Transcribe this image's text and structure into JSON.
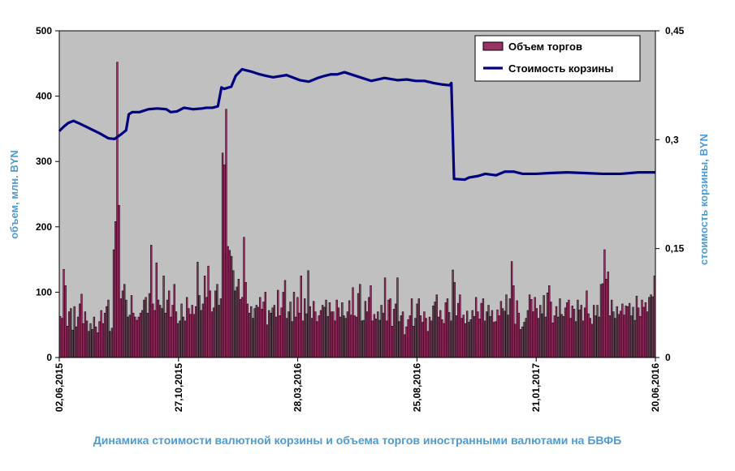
{
  "chart_data": {
    "type": "bar+line",
    "title": "Динамика  стоимости валютной корзины и объема торгов иностранными валютами на БВФБ",
    "left_axis": {
      "label": "объем, млн. BYN",
      "ticks": [
        "0",
        "100",
        "200",
        "300",
        "400",
        "500"
      ],
      "ylim": [
        0,
        500
      ]
    },
    "right_axis": {
      "label": "стоимость  корзины, BYN",
      "ticks": [
        "0",
        "0,15",
        "0,3",
        "0,45"
      ],
      "ylim": [
        0,
        0.45
      ]
    },
    "x_tick_labels": [
      "02,06,2015",
      "27,10,2015",
      "28,03,2016",
      "25,08,2016",
      "21,01,2017",
      "20,06,2016"
    ],
    "legend": {
      "position": "top-right",
      "entries": [
        "Объем торгов",
        "Стоимость  корзины"
      ]
    },
    "colors": {
      "plot_bg": "#c0c0c0",
      "bar_fill": "#993366",
      "line": "#000080",
      "axis_title": "#4f9bd1"
    },
    "grid": false,
    "series": [
      {
        "name": "Объем торгов",
        "kind": "bar",
        "axis": "left",
        "values": [
          63,
          60,
          135,
          110,
          48,
          70,
          75,
          42,
          78,
          47,
          62,
          82,
          97,
          52,
          70,
          56,
          40,
          52,
          43,
          62,
          47,
          38,
          55,
          72,
          52,
          68,
          78,
          88,
          40,
          45,
          165,
          208,
          452,
          233,
          90,
          102,
          112,
          88,
          62,
          65,
          95,
          68,
          62,
          57,
          62,
          68,
          72,
          88,
          92,
          68,
          98,
          172,
          82,
          72,
          145,
          88,
          80,
          75,
          125,
          68,
          88,
          102,
          62,
          80,
          112,
          70,
          52,
          56,
          82,
          62,
          56,
          92,
          75,
          66,
          80,
          66,
          78,
          146,
          95,
          72,
          82,
          125,
          92,
          140,
          102,
          70,
          76,
          102,
          112,
          80,
          90,
          313,
          295,
          380,
          170,
          164,
          155,
          133,
          102,
          108,
          120,
          89,
          92,
          184,
          115,
          82,
          68,
          78,
          60,
          75,
          80,
          77,
          92,
          74,
          85,
          100,
          50,
          72,
          68,
          76,
          80,
          62,
          103,
          64,
          76,
          100,
          118,
          60,
          70,
          85,
          55,
          100,
          62,
          92,
          68,
          125,
          56,
          90,
          67,
          133,
          78,
          60,
          86,
          70,
          55,
          64,
          72,
          80,
          77,
          88,
          63,
          84,
          70,
          70,
          56,
          88,
          76,
          62,
          84,
          64,
          60,
          70,
          87,
          65,
          107,
          64,
          62,
          98,
          112,
          56,
          57,
          86,
          70,
          92,
          110,
          56,
          66,
          59,
          70,
          57,
          80,
          68,
          122,
          56,
          88,
          90,
          48,
          74,
          82,
          122,
          55,
          64,
          70,
          35,
          47,
          58,
          64,
          90,
          48,
          60,
          82,
          90,
          64,
          54,
          70,
          60,
          40,
          62,
          56,
          79,
          85,
          96,
          62,
          72,
          58,
          52,
          84,
          90,
          69,
          56,
          134,
          115,
          64,
          83,
          96,
          60,
          65,
          52,
          71,
          54,
          58,
          72,
          63,
          92,
          70,
          59,
          83,
          90,
          56,
          70,
          80,
          63,
          72,
          54,
          55,
          73,
          64,
          86,
          75,
          71,
          96,
          65,
          90,
          147,
          110,
          51,
          87,
          68,
          43,
          47,
          54,
          60,
          72,
          96,
          89,
          70,
          92,
          75,
          60,
          80,
          67,
          95,
          62,
          99,
          110,
          85,
          53,
          64,
          78,
          62,
          90,
          66,
          63,
          76,
          84,
          88,
          60,
          79,
          74,
          55,
          88,
          73,
          80,
          56,
          76,
          102,
          67,
          60,
          51,
          80,
          64,
          80,
          62,
          112,
          113,
          165,
          120,
          131,
          64,
          88,
          70,
          60,
          78,
          66,
          71,
          82,
          65,
          79,
          78,
          83,
          64,
          77,
          57,
          94,
          76,
          63,
          88,
          77,
          84,
          70,
          92,
          96,
          93,
          125
        ]
      },
      {
        "name": "Стоимость  корзины",
        "kind": "line",
        "axis": "right",
        "x": [
          0,
          5,
          10,
          16,
          25,
          35,
          45,
          55,
          62,
          70,
          75,
          78,
          82,
          90,
          100,
          110,
          120,
          125,
          132,
          140,
          150,
          160,
          165,
          172,
          178,
          182,
          185,
          193,
          198,
          205,
          215,
          225,
          232,
          240,
          255,
          270,
          280,
          290,
          298,
          305,
          312,
          320,
          335,
          350,
          365,
          380,
          390,
          400,
          410,
          420,
          430,
          438,
          440,
          443,
          455,
          460,
          470,
          478,
          490,
          500,
          510,
          520,
          535,
          550,
          570,
          590,
          610,
          630,
          650,
          669
        ],
        "values": [
          0.312,
          0.318,
          0.323,
          0.326,
          0.321,
          0.315,
          0.309,
          0.302,
          0.301,
          0.308,
          0.313,
          0.335,
          0.338,
          0.338,
          0.342,
          0.343,
          0.342,
          0.338,
          0.339,
          0.344,
          0.342,
          0.343,
          0.344,
          0.344,
          0.346,
          0.372,
          0.37,
          0.373,
          0.388,
          0.397,
          0.394,
          0.39,
          0.388,
          0.386,
          0.389,
          0.382,
          0.38,
          0.385,
          0.388,
          0.39,
          0.39,
          0.393,
          0.387,
          0.381,
          0.385,
          0.382,
          0.383,
          0.381,
          0.381,
          0.378,
          0.376,
          0.375,
          0.378,
          0.246,
          0.245,
          0.248,
          0.25,
          0.253,
          0.251,
          0.256,
          0.256,
          0.253,
          0.253,
          0.254,
          0.255,
          0.254,
          0.253,
          0.253,
          0.255,
          0.255
        ]
      }
    ]
  }
}
